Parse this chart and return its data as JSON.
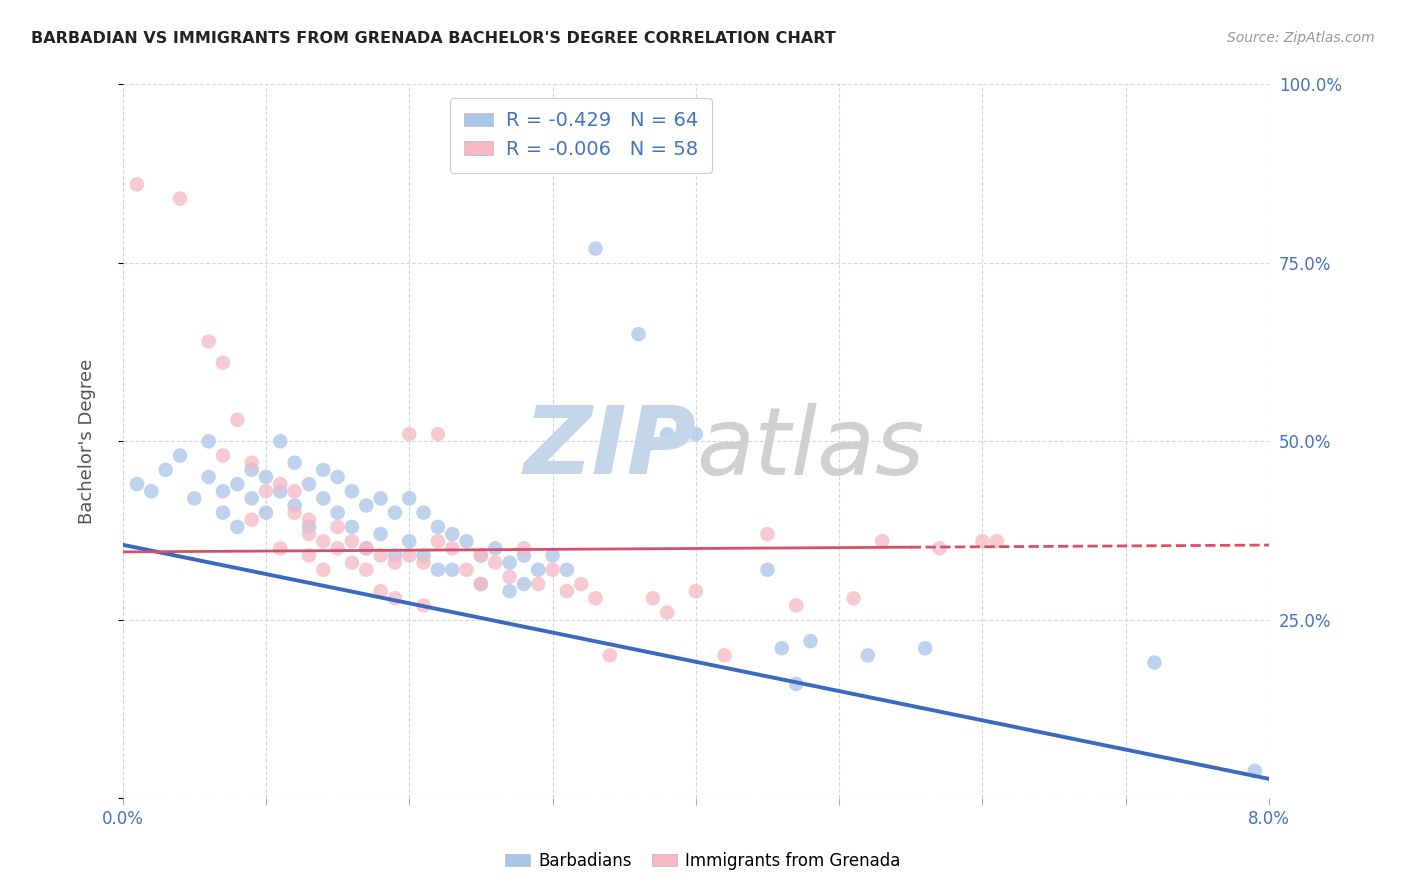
{
  "title": "BARBADIAN VS IMMIGRANTS FROM GRENADA BACHELOR'S DEGREE CORRELATION CHART",
  "source": "Source: ZipAtlas.com",
  "ylabel": "Bachelor's Degree",
  "legend_label1": "Barbadians",
  "legend_label2": "Immigrants from Grenada",
  "r1": -0.429,
  "n1": 64,
  "r2": -0.006,
  "n2": 58,
  "blue_color": "#a8c4e8",
  "pink_color": "#f5b8c4",
  "blue_line_color": "#3a6abf",
  "pink_line_color": "#d94f6a",
  "blue_intercept": 0.355,
  "blue_slope": -4.1,
  "pink_intercept": 0.345,
  "pink_slope": 0.12,
  "blue_scatter": [
    [
      0.001,
      0.44
    ],
    [
      0.002,
      0.43
    ],
    [
      0.003,
      0.46
    ],
    [
      0.004,
      0.48
    ],
    [
      0.005,
      0.42
    ],
    [
      0.006,
      0.45
    ],
    [
      0.006,
      0.5
    ],
    [
      0.007,
      0.43
    ],
    [
      0.007,
      0.4
    ],
    [
      0.008,
      0.44
    ],
    [
      0.008,
      0.38
    ],
    [
      0.009,
      0.46
    ],
    [
      0.009,
      0.42
    ],
    [
      0.01,
      0.45
    ],
    [
      0.01,
      0.4
    ],
    [
      0.011,
      0.5
    ],
    [
      0.011,
      0.43
    ],
    [
      0.012,
      0.47
    ],
    [
      0.012,
      0.41
    ],
    [
      0.013,
      0.44
    ],
    [
      0.013,
      0.38
    ],
    [
      0.014,
      0.46
    ],
    [
      0.014,
      0.42
    ],
    [
      0.015,
      0.45
    ],
    [
      0.015,
      0.4
    ],
    [
      0.016,
      0.43
    ],
    [
      0.016,
      0.38
    ],
    [
      0.017,
      0.41
    ],
    [
      0.017,
      0.35
    ],
    [
      0.018,
      0.42
    ],
    [
      0.018,
      0.37
    ],
    [
      0.019,
      0.4
    ],
    [
      0.019,
      0.34
    ],
    [
      0.02,
      0.42
    ],
    [
      0.02,
      0.36
    ],
    [
      0.021,
      0.4
    ],
    [
      0.021,
      0.34
    ],
    [
      0.022,
      0.38
    ],
    [
      0.022,
      0.32
    ],
    [
      0.023,
      0.37
    ],
    [
      0.023,
      0.32
    ],
    [
      0.024,
      0.36
    ],
    [
      0.025,
      0.34
    ],
    [
      0.025,
      0.3
    ],
    [
      0.026,
      0.35
    ],
    [
      0.027,
      0.33
    ],
    [
      0.027,
      0.29
    ],
    [
      0.028,
      0.34
    ],
    [
      0.028,
      0.3
    ],
    [
      0.029,
      0.32
    ],
    [
      0.03,
      0.34
    ],
    [
      0.031,
      0.32
    ],
    [
      0.033,
      0.77
    ],
    [
      0.036,
      0.65
    ],
    [
      0.038,
      0.51
    ],
    [
      0.04,
      0.51
    ],
    [
      0.045,
      0.32
    ],
    [
      0.046,
      0.21
    ],
    [
      0.047,
      0.16
    ],
    [
      0.048,
      0.22
    ],
    [
      0.052,
      0.2
    ],
    [
      0.056,
      0.21
    ],
    [
      0.072,
      0.19
    ],
    [
      0.079,
      0.038
    ]
  ],
  "pink_scatter": [
    [
      0.001,
      0.86
    ],
    [
      0.004,
      0.84
    ],
    [
      0.006,
      0.64
    ],
    [
      0.007,
      0.61
    ],
    [
      0.007,
      0.48
    ],
    [
      0.008,
      0.53
    ],
    [
      0.009,
      0.47
    ],
    [
      0.009,
      0.39
    ],
    [
      0.01,
      0.43
    ],
    [
      0.011,
      0.35
    ],
    [
      0.011,
      0.44
    ],
    [
      0.012,
      0.4
    ],
    [
      0.012,
      0.43
    ],
    [
      0.013,
      0.37
    ],
    [
      0.013,
      0.39
    ],
    [
      0.013,
      0.34
    ],
    [
      0.014,
      0.36
    ],
    [
      0.014,
      0.32
    ],
    [
      0.015,
      0.38
    ],
    [
      0.015,
      0.35
    ],
    [
      0.016,
      0.36
    ],
    [
      0.016,
      0.33
    ],
    [
      0.017,
      0.35
    ],
    [
      0.017,
      0.32
    ],
    [
      0.018,
      0.34
    ],
    [
      0.018,
      0.29
    ],
    [
      0.019,
      0.33
    ],
    [
      0.019,
      0.28
    ],
    [
      0.02,
      0.51
    ],
    [
      0.02,
      0.34
    ],
    [
      0.021,
      0.33
    ],
    [
      0.021,
      0.27
    ],
    [
      0.022,
      0.51
    ],
    [
      0.022,
      0.36
    ],
    [
      0.023,
      0.35
    ],
    [
      0.024,
      0.32
    ],
    [
      0.025,
      0.34
    ],
    [
      0.025,
      0.3
    ],
    [
      0.026,
      0.33
    ],
    [
      0.027,
      0.31
    ],
    [
      0.028,
      0.35
    ],
    [
      0.029,
      0.3
    ],
    [
      0.03,
      0.32
    ],
    [
      0.031,
      0.29
    ],
    [
      0.032,
      0.3
    ],
    [
      0.033,
      0.28
    ],
    [
      0.034,
      0.2
    ],
    [
      0.037,
      0.28
    ],
    [
      0.038,
      0.26
    ],
    [
      0.04,
      0.29
    ],
    [
      0.042,
      0.2
    ],
    [
      0.045,
      0.37
    ],
    [
      0.047,
      0.27
    ],
    [
      0.051,
      0.28
    ],
    [
      0.053,
      0.36
    ],
    [
      0.057,
      0.35
    ],
    [
      0.06,
      0.36
    ],
    [
      0.061,
      0.36
    ]
  ],
  "xlim": [
    0.0,
    0.08
  ],
  "ylim": [
    0.0,
    1.0
  ],
  "xticks": [
    0.0,
    0.01,
    0.02,
    0.03,
    0.04,
    0.05,
    0.06,
    0.07,
    0.08
  ],
  "yticks": [
    0.0,
    0.25,
    0.5,
    0.75,
    1.0
  ],
  "ytick_labels_right": [
    "",
    "25.0%",
    "50.0%",
    "75.0%",
    "100.0%"
  ],
  "xtick_labels": [
    "0.0%",
    "",
    "",
    "",
    "",
    "",
    "",
    "",
    "8.0%"
  ],
  "background_color": "#ffffff",
  "grid_color": "#d0d8e8",
  "title_color": "#222222",
  "axis_label_color": "#4472c4",
  "text_color": "#555555"
}
